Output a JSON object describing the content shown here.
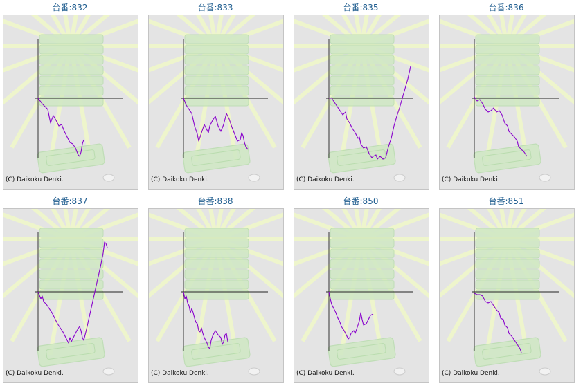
{
  "copyright": "(C) Daikoku Denki.",
  "colors": {
    "title": "#1f5d8f",
    "line": "#8800cc",
    "axis": "#222222",
    "panel_bg": "#e4e4e4",
    "rays": "#eef5cc",
    "machine": "#cfe8c4"
  },
  "machines": [
    {
      "title": "台番:832"
    },
    {
      "title": "台番:833"
    },
    {
      "title": "台番:835"
    },
    {
      "title": "台番:836"
    },
    {
      "title": "台番:837"
    },
    {
      "title": "台番:838"
    },
    {
      "title": "台番:850"
    },
    {
      "title": "台番:851"
    }
  ]
}
